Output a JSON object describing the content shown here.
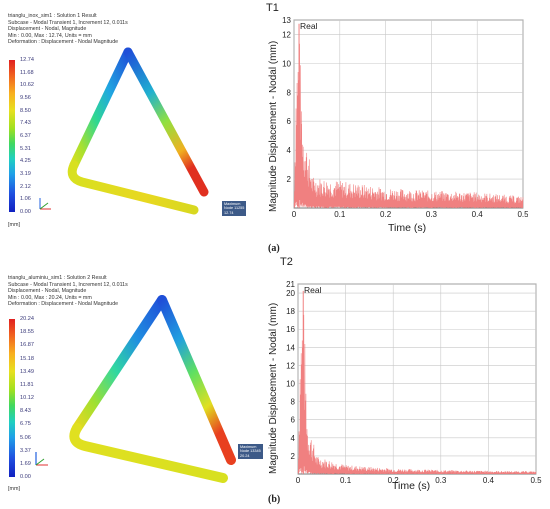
{
  "panel_a": {
    "title": "T1",
    "caption": "(a)",
    "fea": {
      "header": [
        "trianglu_inox_sim1 : Solution 1 Result",
        "Subcase - Modal Transient 1, Increment 12, 0.011s",
        "Displacement - Nodal, Magnitude",
        "Min : 0.00, Max : 12.74, Units = mm",
        "Deformation : Displacement - Nodal Magnitude"
      ],
      "legend_ticks": [
        "12.74",
        "11.68",
        "10.62",
        "9.56",
        "8.50",
        "7.43",
        "6.37",
        "5.31",
        "4.25",
        "3.19",
        "2.12",
        "1.06",
        "0.00"
      ],
      "unit": "[mm]",
      "max_tag": [
        "Maximum",
        "Node 11255",
        "12.74"
      ]
    },
    "chart_data": {
      "type": "line",
      "title": "",
      "legend": "Real",
      "xlabel": "Time (s)",
      "ylabel": "Magnitude Displacement - Nodal (mm)",
      "xlim": [
        0,
        0.5
      ],
      "ylim": [
        0,
        13
      ],
      "x_ticks": [
        "0",
        "0.1",
        "0.2",
        "0.3",
        "0.4",
        "0.5"
      ],
      "y_ticks": [
        "2",
        "4",
        "6",
        "8",
        "10",
        "12",
        "13"
      ],
      "grid": true,
      "peak": {
        "x": 0.011,
        "y": 12.74
      },
      "envelope": [
        [
          0,
          0.5
        ],
        [
          0.005,
          10.5
        ],
        [
          0.011,
          12.74
        ],
        [
          0.02,
          6
        ],
        [
          0.04,
          2.2
        ],
        [
          0.1,
          1.9
        ],
        [
          0.2,
          1.4
        ],
        [
          0.3,
          1.2
        ],
        [
          0.4,
          1.1
        ],
        [
          0.5,
          0.8
        ]
      ],
      "line_color": "#f08080"
    }
  },
  "panel_b": {
    "title": "T2",
    "caption": "(b)",
    "fea": {
      "header": [
        "trianglu_aluminiu_sim1 : Solution 2 Result",
        "Subcase - Modal Transient 1, Increment 12, 0.011s",
        "Displacement - Nodal, Magnitude",
        "Min : 0.00, Max : 20.24, Units = mm",
        "Deformation : Displacement - Nodal Magnitude"
      ],
      "legend_ticks": [
        "20.24",
        "18.55",
        "16.87",
        "15.18",
        "13.49",
        "11.81",
        "10.12",
        "8.43",
        "6.75",
        "5.06",
        "3.37",
        "1.69",
        "0.00"
      ],
      "unit": "[mm]",
      "max_tag": [
        "Maximum",
        "Node 13345",
        "20.24"
      ]
    },
    "chart_data": {
      "type": "line",
      "title": "",
      "legend": "Real",
      "xlabel": "Time (s)",
      "ylabel": "Magnitude Displacement - Nodal (mm)",
      "xlim": [
        0,
        0.5
      ],
      "ylim": [
        0,
        21
      ],
      "x_ticks": [
        "0",
        "0.1",
        "0.2",
        "0.3",
        "0.4",
        "0.5"
      ],
      "y_ticks": [
        "2",
        "4",
        "6",
        "8",
        "10",
        "12",
        "14",
        "16",
        "18",
        "20",
        "21"
      ],
      "grid": true,
      "peak": {
        "x": 0.011,
        "y": 20.24
      },
      "envelope": [
        [
          0,
          0.5
        ],
        [
          0.005,
          16
        ],
        [
          0.011,
          20.24
        ],
        [
          0.02,
          6
        ],
        [
          0.04,
          2
        ],
        [
          0.1,
          1.0
        ],
        [
          0.2,
          0.6
        ],
        [
          0.3,
          0.45
        ],
        [
          0.4,
          0.35
        ],
        [
          0.5,
          0.3
        ]
      ],
      "line_color": "#f08080"
    }
  }
}
